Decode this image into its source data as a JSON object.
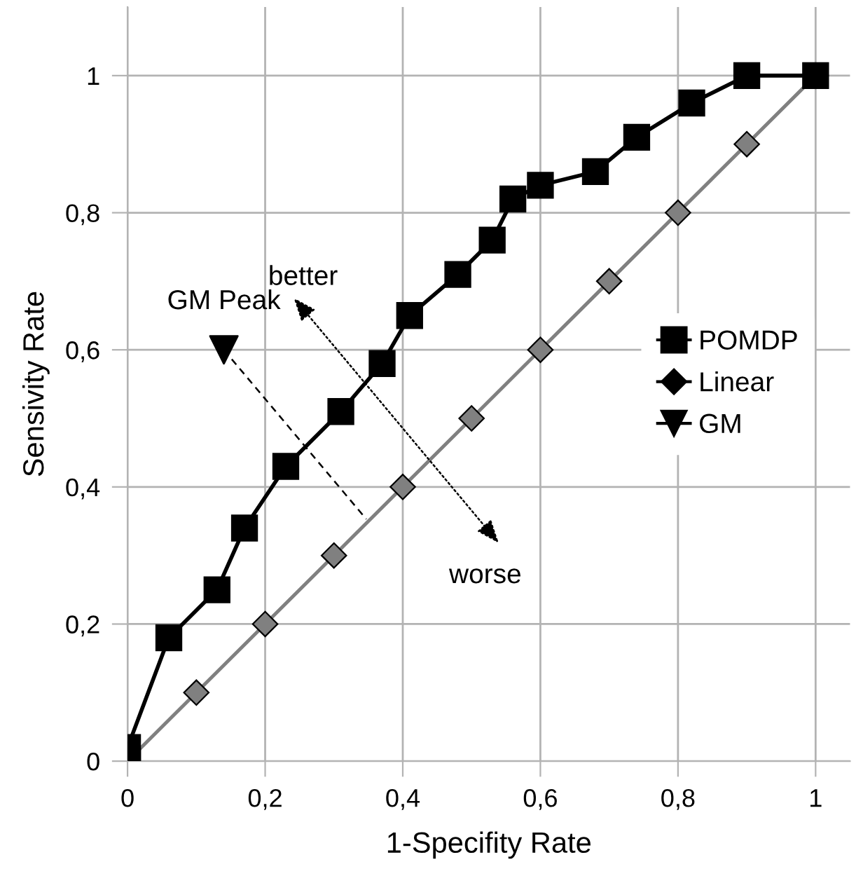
{
  "chart_data": {
    "type": "line",
    "xlabel": "1-Specifity Rate",
    "ylabel": "Sensivity Rate",
    "xlim": [
      0,
      1.05
    ],
    "ylim": [
      0,
      1.1
    ],
    "xticks": [
      {
        "value": 0,
        "label": "0"
      },
      {
        "value": 0.2,
        "label": "0,2"
      },
      {
        "value": 0.4,
        "label": "0,4"
      },
      {
        "value": 0.6,
        "label": "0,6"
      },
      {
        "value": 0.8,
        "label": "0,8"
      },
      {
        "value": 1,
        "label": "1"
      }
    ],
    "yticks": [
      {
        "value": 0,
        "label": "0"
      },
      {
        "value": 0.2,
        "label": "0,2"
      },
      {
        "value": 0.4,
        "label": "0,4"
      },
      {
        "value": 0.6,
        "label": "0,6"
      },
      {
        "value": 0.8,
        "label": "0,8"
      },
      {
        "value": 1,
        "label": "1"
      }
    ],
    "grid": true,
    "legend": "right",
    "series": [
      {
        "name": "POMDP",
        "color": "#000000",
        "marker": "square",
        "x": [
          0,
          0,
          0.06,
          0.13,
          0.17,
          0.23,
          0.31,
          0.37,
          0.41,
          0.48,
          0.53,
          0.56,
          0.6,
          0.68,
          0.74,
          0.82,
          0.9,
          1
        ],
        "values": [
          0,
          0.02,
          0.18,
          0.25,
          0.34,
          0.43,
          0.51,
          0.58,
          0.65,
          0.71,
          0.76,
          0.82,
          0.84,
          0.86,
          0.91,
          0.96,
          1,
          1
        ]
      },
      {
        "name": "Linear",
        "color": "#808080",
        "marker": "diamond",
        "x": [
          0,
          0.1,
          0.2,
          0.3,
          0.4,
          0.5,
          0.6,
          0.7,
          0.8,
          0.9,
          1
        ],
        "values": [
          0,
          0.1,
          0.2,
          0.3,
          0.4,
          0.5,
          0.6,
          0.7,
          0.8,
          0.9,
          1
        ]
      },
      {
        "name": "GM",
        "color": "#000000",
        "type": "scatter",
        "marker": "triangle",
        "x": [
          0.14
        ],
        "values": [
          0.6
        ]
      }
    ],
    "annotations": [
      {
        "text": "GM Peak",
        "x": 0.14,
        "y": 0.6
      },
      "better",
      "worse"
    ]
  }
}
